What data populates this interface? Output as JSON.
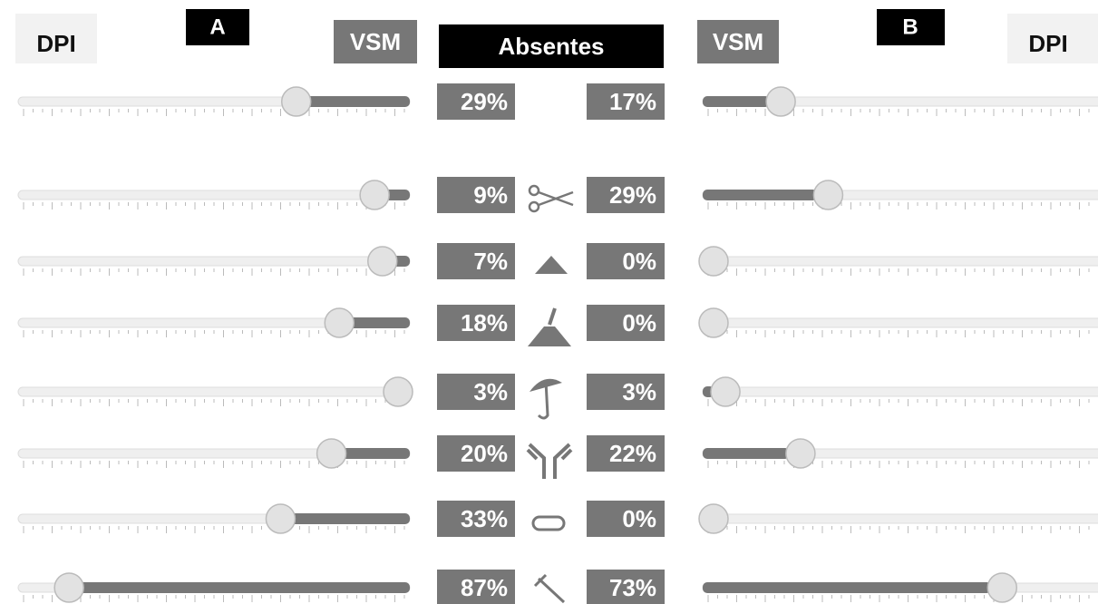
{
  "header": {
    "left_label": "DPI",
    "left_panel": "A",
    "left_vsm": "VSM",
    "center": "Absentes",
    "right_vsm": "VSM",
    "right_panel": "B",
    "right_label": "DPI"
  },
  "rows": [
    {
      "a": {
        "value": 29,
        "label": "29%"
      },
      "b": {
        "value": 17,
        "label": "17%"
      }
    },
    {
      "a": {
        "value": 9,
        "label": "9%"
      },
      "b": {
        "value": 29,
        "label": "29%"
      }
    },
    {
      "a": {
        "value": 7,
        "label": "7%"
      },
      "b": {
        "value": 0,
        "label": "0%"
      }
    },
    {
      "a": {
        "value": 18,
        "label": "18%"
      },
      "b": {
        "value": 0,
        "label": "0%"
      }
    },
    {
      "a": {
        "value": 3,
        "label": "3%"
      },
      "b": {
        "value": 3,
        "label": "3%"
      }
    },
    {
      "a": {
        "value": 20,
        "label": "20%"
      },
      "b": {
        "value": 22,
        "label": "22%"
      }
    },
    {
      "a": {
        "value": 33,
        "label": "33%"
      },
      "b": {
        "value": 0,
        "label": "0%"
      }
    },
    {
      "a": {
        "value": 87,
        "label": "87%"
      },
      "b": {
        "value": 73,
        "label": "73%"
      }
    }
  ]
}
